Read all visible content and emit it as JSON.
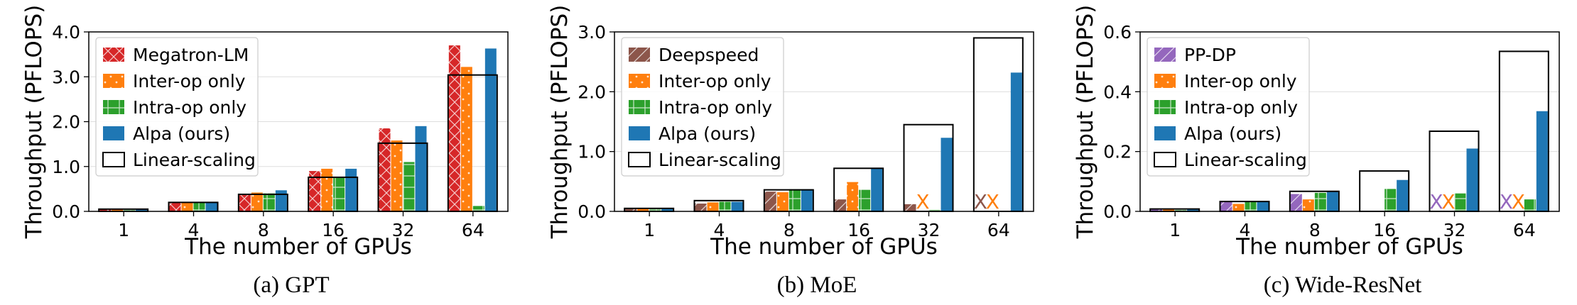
{
  "colors": {
    "baseline_red": "#d62728",
    "baseline_brown": "#8c564b",
    "baseline_purple": "#9467bd",
    "inter": "#ff7f0e",
    "intra": "#2ca02c",
    "alpa": "#1f77b4",
    "linear": "#000000"
  },
  "chart_data": [
    {
      "type": "bar",
      "caption": "(a) GPT",
      "xlabel": "The number of GPUs",
      "ylabel": "Throughput (PFLOPS)",
      "ylim": [
        0,
        4.0
      ],
      "yticks": [
        "0.0",
        "1.0",
        "2.0",
        "3.0",
        "4.0"
      ],
      "ytick_values": [
        0,
        1,
        2,
        3,
        4
      ],
      "categories": [
        "1",
        "4",
        "8",
        "16",
        "32",
        "64"
      ],
      "legend_position": "top-left",
      "grid": "horizontal",
      "series": [
        {
          "name": "Megatron-LM",
          "color": "#d62728",
          "hatch": "cross",
          "values": [
            0.05,
            0.2,
            0.38,
            0.9,
            1.85,
            3.7
          ]
        },
        {
          "name": "Inter-op only",
          "color": "#ff7f0e",
          "hatch": "dots",
          "values": [
            0.05,
            0.2,
            0.42,
            0.95,
            1.58,
            3.22
          ]
        },
        {
          "name": "Intra-op only",
          "color": "#2ca02c",
          "hatch": "grid",
          "values": [
            0.05,
            0.2,
            0.4,
            0.76,
            1.1,
            0.12
          ]
        },
        {
          "name": "Alpa (ours)",
          "color": "#1f77b4",
          "hatch": "none",
          "values": [
            0.05,
            0.2,
            0.47,
            0.95,
            1.9,
            3.63
          ]
        }
      ],
      "linear_scaling": {
        "name": "Linear-scaling",
        "values": [
          0.05,
          0.2,
          0.38,
          0.76,
          1.52,
          3.04
        ]
      },
      "failed": []
    },
    {
      "type": "bar",
      "caption": "(b) MoE",
      "xlabel": "The number of GPUs",
      "ylabel": "Throughput (PFLOPS)",
      "ylim": [
        0,
        3.0
      ],
      "yticks": [
        "0.0",
        "1.0",
        "2.0",
        "3.0"
      ],
      "ytick_values": [
        0,
        1,
        2,
        3
      ],
      "categories": [
        "1",
        "4",
        "8",
        "16",
        "32",
        "64"
      ],
      "legend_position": "top-left",
      "grid": "horizontal",
      "series": [
        {
          "name": "Deepspeed",
          "color": "#8c564b",
          "hatch": "diag",
          "values": [
            0.05,
            0.13,
            0.33,
            0.2,
            0.12,
            0
          ]
        },
        {
          "name": "Inter-op only",
          "color": "#ff7f0e",
          "hatch": "dots",
          "values": [
            0.05,
            0.15,
            0.32,
            0.49,
            0,
            0
          ]
        },
        {
          "name": "Intra-op only",
          "color": "#2ca02c",
          "hatch": "grid",
          "values": [
            0.05,
            0.16,
            0.37,
            0.36,
            0.03,
            0
          ]
        },
        {
          "name": "Alpa (ours)",
          "color": "#1f77b4",
          "hatch": "none",
          "values": [
            0.05,
            0.16,
            0.37,
            0.73,
            1.23,
            2.32
          ]
        }
      ],
      "linear_scaling": {
        "name": "Linear-scaling",
        "values": [
          0.05,
          0.18,
          0.36,
          0.72,
          1.45,
          2.9
        ]
      },
      "failed": [
        {
          "category_index": 4,
          "series_index": 1,
          "label": "X"
        },
        {
          "category_index": 5,
          "series_index": 0,
          "label": "X"
        },
        {
          "category_index": 5,
          "series_index": 1,
          "label": "X"
        }
      ]
    },
    {
      "type": "bar",
      "caption": "(c) Wide-ResNet",
      "xlabel": "The number of GPUs",
      "ylabel": "Throughput (PFLOPS)",
      "ylim": [
        0,
        0.6
      ],
      "yticks": [
        "0.0",
        "0.2",
        "0.4",
        "0.6"
      ],
      "ytick_values": [
        0,
        0.2,
        0.4,
        0.6
      ],
      "categories": [
        "1",
        "4",
        "8",
        "16",
        "32",
        "64"
      ],
      "legend_position": "top-left",
      "grid": "horizontal",
      "series": [
        {
          "name": "PP-DP",
          "color": "#9467bd",
          "hatch": "diag",
          "values": [
            0.008,
            0.033,
            0.058,
            0,
            0,
            0
          ]
        },
        {
          "name": "Inter-op only",
          "color": "#ff7f0e",
          "hatch": "dots",
          "values": [
            0.008,
            0.025,
            0.04,
            0,
            0,
            0
          ]
        },
        {
          "name": "Intra-op only",
          "color": "#2ca02c",
          "hatch": "grid",
          "values": [
            0.008,
            0.033,
            0.062,
            0.075,
            0.06,
            0.04
          ]
        },
        {
          "name": "Alpa (ours)",
          "color": "#1f77b4",
          "hatch": "none",
          "values": [
            0.008,
            0.033,
            0.065,
            0.105,
            0.21,
            0.335
          ]
        }
      ],
      "linear_scaling": {
        "name": "Linear-scaling",
        "values": [
          0.008,
          0.033,
          0.067,
          0.135,
          0.268,
          0.535
        ]
      },
      "failed": [
        {
          "category_index": 4,
          "series_index": 0,
          "label": "X"
        },
        {
          "category_index": 4,
          "series_index": 1,
          "label": "X"
        },
        {
          "category_index": 5,
          "series_index": 0,
          "label": "X"
        },
        {
          "category_index": 5,
          "series_index": 1,
          "label": "X"
        }
      ]
    }
  ]
}
